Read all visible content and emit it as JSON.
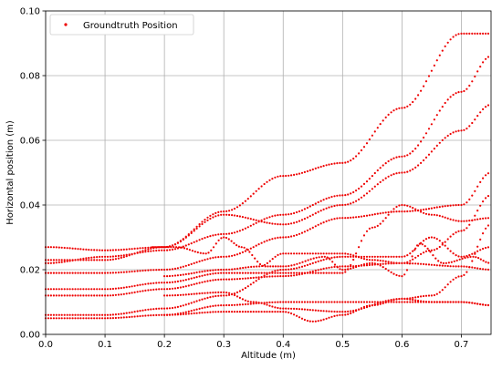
{
  "chart_data": {
    "type": "scatter",
    "xlabel": "Altitude (m)",
    "ylabel": "Horizontal position (m)",
    "xlim": [
      0.0,
      0.75
    ],
    "ylim": [
      0.0,
      0.1
    ],
    "x_ticks": [
      "0.0",
      "0.1",
      "0.2",
      "0.3",
      "0.4",
      "0.5",
      "0.6",
      "0.7"
    ],
    "y_ticks": [
      "0.00",
      "0.02",
      "0.04",
      "0.06",
      "0.08",
      "0.10"
    ],
    "x_tick_values": [
      0.0,
      0.1,
      0.2,
      0.3,
      0.4,
      0.5,
      0.6,
      0.7
    ],
    "y_tick_values": [
      0.0,
      0.02,
      0.04,
      0.06,
      0.08,
      0.1
    ],
    "grid": true,
    "legend_position": "top-left",
    "marker_color": "#ee0000",
    "series": [
      {
        "name": "Groundtruth Position",
        "tracks": [
          [
            [
              0.0,
              0.023
            ],
            [
              0.1,
              0.023
            ],
            [
              0.2,
              0.027
            ],
            [
              0.3,
              0.038
            ],
            [
              0.4,
              0.049
            ],
            [
              0.5,
              0.053
            ],
            [
              0.6,
              0.07
            ],
            [
              0.7,
              0.093
            ],
            [
              0.75,
              0.093
            ]
          ],
          [
            [
              0.0,
              0.022
            ],
            [
              0.1,
              0.024
            ],
            [
              0.2,
              0.026
            ],
            [
              0.3,
              0.031
            ],
            [
              0.4,
              0.037
            ],
            [
              0.5,
              0.043
            ],
            [
              0.6,
              0.055
            ],
            [
              0.7,
              0.075
            ],
            [
              0.75,
              0.086
            ]
          ],
          [
            [
              0.0,
              0.027
            ],
            [
              0.1,
              0.026
            ],
            [
              0.2,
              0.027
            ],
            [
              0.3,
              0.037
            ],
            [
              0.4,
              0.034
            ],
            [
              0.5,
              0.04
            ],
            [
              0.6,
              0.05
            ],
            [
              0.7,
              0.063
            ],
            [
              0.75,
              0.071
            ]
          ],
          [
            [
              0.0,
              0.019
            ],
            [
              0.1,
              0.019
            ],
            [
              0.2,
              0.02
            ],
            [
              0.3,
              0.024
            ],
            [
              0.4,
              0.03
            ],
            [
              0.5,
              0.036
            ],
            [
              0.6,
              0.038
            ],
            [
              0.7,
              0.04
            ],
            [
              0.75,
              0.05
            ]
          ],
          [
            [
              0.18,
              0.027
            ],
            [
              0.22,
              0.027
            ],
            [
              0.27,
              0.025
            ],
            [
              0.3,
              0.03
            ],
            [
              0.33,
              0.027
            ],
            [
              0.37,
              0.021
            ],
            [
              0.4,
              0.021
            ],
            [
              0.47,
              0.024
            ],
            [
              0.5,
              0.02
            ],
            [
              0.55,
              0.022
            ],
            [
              0.6,
              0.018
            ],
            [
              0.63,
              0.028
            ],
            [
              0.67,
              0.022
            ],
            [
              0.72,
              0.024
            ],
            [
              0.75,
              0.022
            ]
          ],
          [
            [
              0.2,
              0.018
            ],
            [
              0.3,
              0.02
            ],
            [
              0.36,
              0.021
            ],
            [
              0.4,
              0.025
            ],
            [
              0.45,
              0.025
            ],
            [
              0.5,
              0.025
            ],
            [
              0.55,
              0.023
            ],
            [
              0.6,
              0.022
            ],
            [
              0.65,
              0.026
            ],
            [
              0.7,
              0.032
            ],
            [
              0.75,
              0.043
            ]
          ],
          [
            [
              0.0,
              0.014
            ],
            [
              0.1,
              0.014
            ],
            [
              0.2,
              0.016
            ],
            [
              0.3,
              0.019
            ],
            [
              0.4,
              0.019
            ],
            [
              0.5,
              0.019
            ],
            [
              0.55,
              0.033
            ],
            [
              0.6,
              0.04
            ],
            [
              0.65,
              0.037
            ],
            [
              0.7,
              0.035
            ],
            [
              0.75,
              0.036
            ]
          ],
          [
            [
              0.0,
              0.012
            ],
            [
              0.1,
              0.012
            ],
            [
              0.2,
              0.014
            ],
            [
              0.3,
              0.017
            ],
            [
              0.4,
              0.018
            ],
            [
              0.5,
              0.021
            ],
            [
              0.6,
              0.022
            ],
            [
              0.7,
              0.021
            ],
            [
              0.75,
              0.02
            ]
          ],
          [
            [
              0.0,
              0.006
            ],
            [
              0.1,
              0.006
            ],
            [
              0.2,
              0.008
            ],
            [
              0.3,
              0.012
            ],
            [
              0.4,
              0.02
            ],
            [
              0.5,
              0.024
            ],
            [
              0.6,
              0.024
            ],
            [
              0.65,
              0.03
            ],
            [
              0.7,
              0.024
            ],
            [
              0.75,
              0.027
            ]
          ],
          [
            [
              0.2,
              0.012
            ],
            [
              0.3,
              0.013
            ],
            [
              0.35,
              0.01
            ],
            [
              0.4,
              0.008
            ],
            [
              0.5,
              0.007
            ],
            [
              0.6,
              0.011
            ],
            [
              0.65,
              0.01
            ],
            [
              0.7,
              0.01
            ],
            [
              0.75,
              0.009
            ]
          ],
          [
            [
              0.2,
              0.006
            ],
            [
              0.3,
              0.007
            ],
            [
              0.4,
              0.007
            ],
            [
              0.45,
              0.004
            ],
            [
              0.5,
              0.006
            ],
            [
              0.55,
              0.009
            ],
            [
              0.6,
              0.011
            ],
            [
              0.65,
              0.012
            ],
            [
              0.7,
              0.018
            ],
            [
              0.75,
              0.034
            ]
          ],
          [
            [
              0.0,
              0.005
            ],
            [
              0.1,
              0.005
            ],
            [
              0.2,
              0.006
            ],
            [
              0.3,
              0.009
            ],
            [
              0.4,
              0.01
            ],
            [
              0.5,
              0.01
            ],
            [
              0.6,
              0.01
            ],
            [
              0.7,
              0.01
            ],
            [
              0.75,
              0.009
            ]
          ]
        ]
      }
    ]
  }
}
